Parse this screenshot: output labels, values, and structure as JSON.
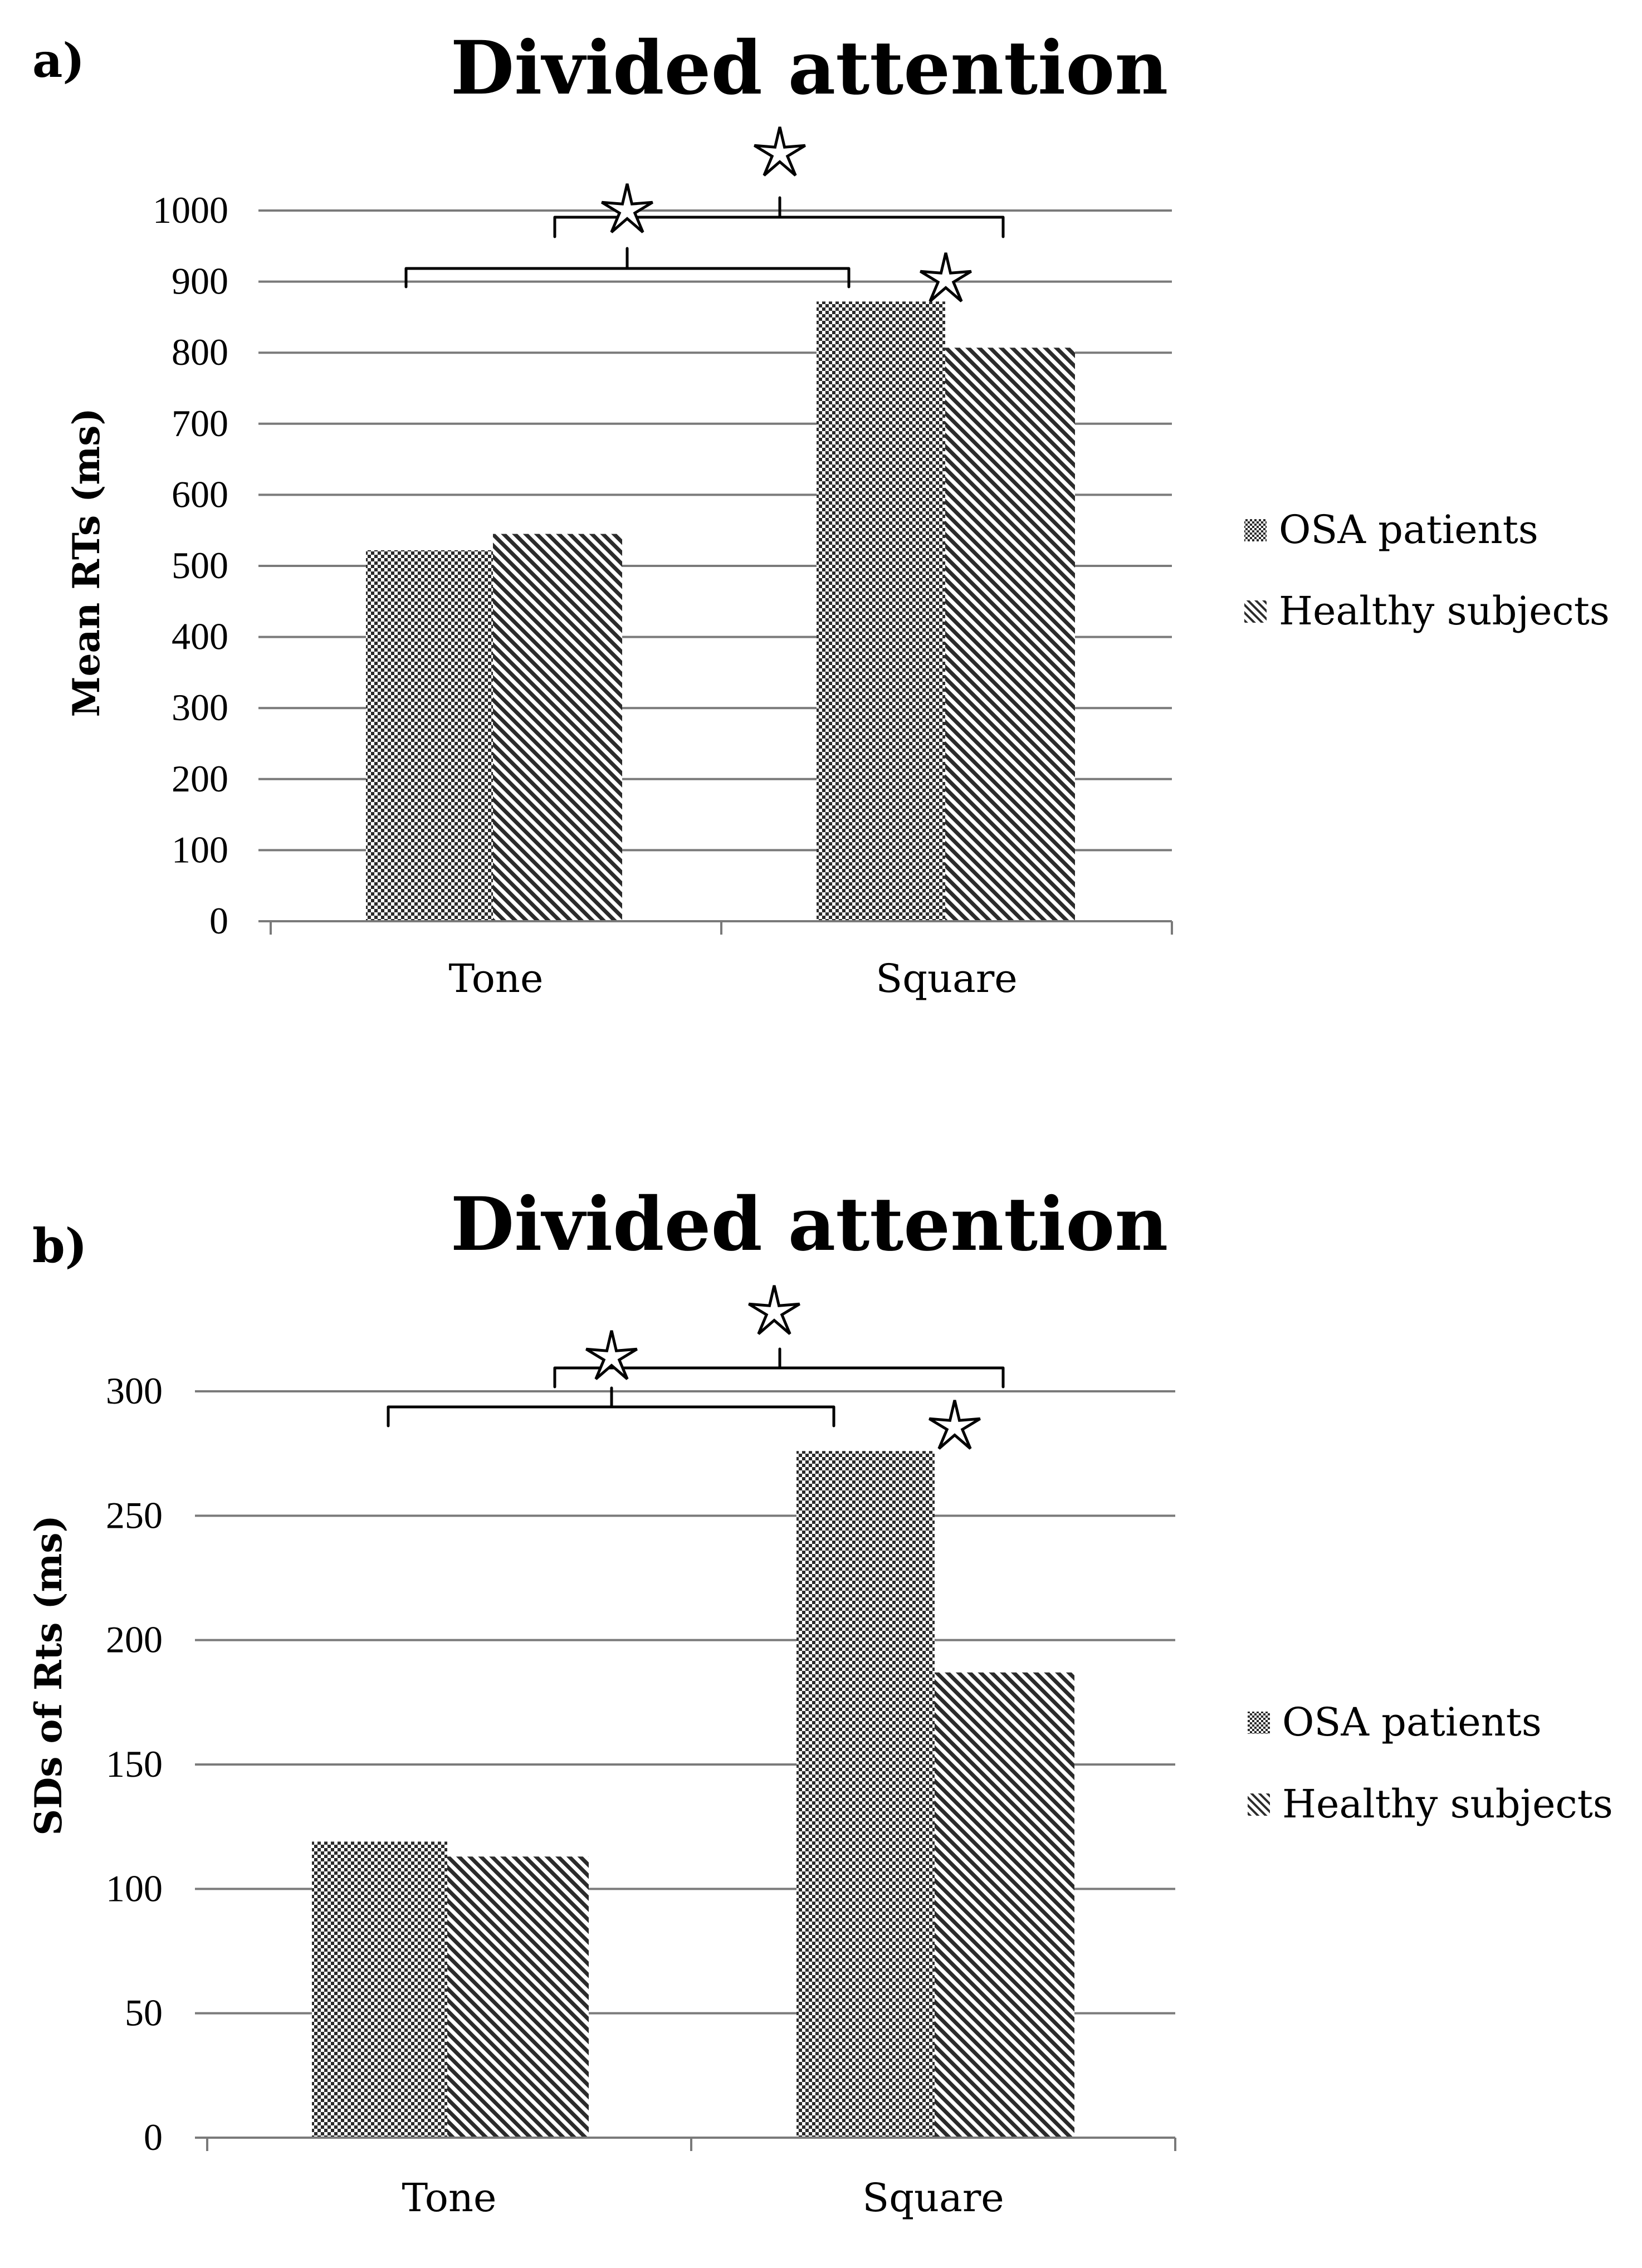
{
  "chart_data": [
    {
      "type": "bar",
      "panel_label": "a)",
      "title": "Divided attention",
      "ylabel": "Mean  RTs (ms)",
      "xlabel": "",
      "categories": [
        "Tone",
        "Square"
      ],
      "series": [
        {
          "name": "OSA patients",
          "pattern": "checker",
          "values": [
            522,
            872
          ]
        },
        {
          "name": "Healthy subjects",
          "pattern": "diagonal",
          "values": [
            545,
            807
          ]
        }
      ],
      "ylim": [
        0,
        1000
      ],
      "yticks": [
        "0",
        "100",
        "200",
        "300",
        "400",
        "500",
        "600",
        "700",
        "800",
        "900",
        "1000"
      ],
      "grid": true,
      "legend": "right",
      "significance": [
        {
          "between": "OSA patients: Tone vs Square",
          "marker": "star"
        },
        {
          "between": "Healthy subjects: Tone vs Square",
          "marker": "star"
        },
        {
          "between": "Square: OSA patients vs Healthy subjects",
          "marker": "star"
        }
      ]
    },
    {
      "type": "bar",
      "panel_label": "b)",
      "title": "Divided attention",
      "ylabel": "SDs of Rts (ms)",
      "xlabel": "",
      "categories": [
        "Tone",
        "Square"
      ],
      "series": [
        {
          "name": "OSA patients",
          "pattern": "checker",
          "values": [
            119,
            276
          ]
        },
        {
          "name": "Healthy subjects",
          "pattern": "diagonal",
          "values": [
            113,
            187
          ]
        }
      ],
      "ylim": [
        0,
        300
      ],
      "yticks": [
        "0",
        "50",
        "100",
        "150",
        "200",
        "250",
        "300"
      ],
      "grid": true,
      "legend": "right",
      "significance": [
        {
          "between": "OSA patients: Tone vs Square",
          "marker": "star"
        },
        {
          "between": "Healthy subjects: Tone vs Square",
          "marker": "star"
        },
        {
          "between": "Square: OSA patients vs Healthy subjects",
          "marker": "star"
        }
      ]
    }
  ],
  "colors": {
    "bar": "#2b2b2b",
    "grid": "#7a7a7a",
    "text": "#000000"
  }
}
